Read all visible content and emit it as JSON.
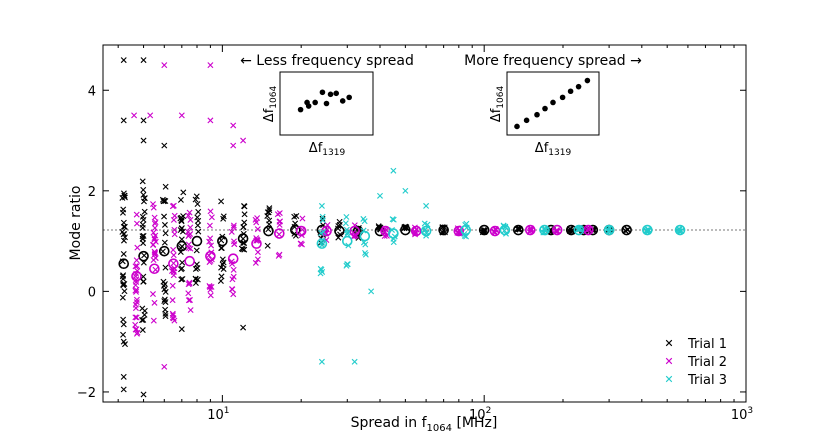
{
  "chart_data": {
    "type": "scatter",
    "xscale": "log",
    "xlim": [
      3.5,
      1000
    ],
    "ylim": [
      -2.2,
      4.9
    ],
    "xlabel_main": "Spread in f",
    "xlabel_sub": "1064",
    "xlabel_unit": " [MHz]",
    "ylabel": "Mode ratio",
    "xticks": [
      {
        "value": 10,
        "base": "10",
        "exp": "1"
      },
      {
        "value": 100,
        "base": "10",
        "exp": "2"
      },
      {
        "value": 1000,
        "base": "10",
        "exp": "3"
      }
    ],
    "yticks": [
      {
        "value": -2,
        "label": "−2"
      },
      {
        "value": 0,
        "label": "0"
      },
      {
        "value": 2,
        "label": "2"
      },
      {
        "value": 4,
        "label": "4"
      }
    ],
    "reference_line": {
      "y": 1.22,
      "style": "dotted"
    },
    "series": [
      {
        "name": "Trial 1",
        "color": "#000000",
        "x_positions": [
          4.2,
          5.0,
          6.0,
          7.0,
          8.0,
          10.0,
          12.0,
          15.0,
          19.0,
          24.0,
          28.0,
          33.0,
          40.0,
          50.0,
          70.0,
          100.0,
          135.0,
          180.0,
          215.0,
          240.0,
          260.0,
          300.0,
          350.0
        ],
        "means": [
          0.55,
          0.7,
          0.8,
          0.9,
          1.0,
          1.0,
          1.05,
          1.2,
          1.22,
          1.22,
          1.2,
          1.2,
          1.2,
          1.22,
          1.22,
          1.22,
          1.22,
          1.22,
          1.22,
          1.22,
          1.22,
          1.22,
          1.22
        ],
        "spreads": [
          1.6,
          1.5,
          1.3,
          1.1,
          0.9,
          0.8,
          0.7,
          0.5,
          0.35,
          0.25,
          0.2,
          0.15,
          0.12,
          0.08,
          0.06,
          0.05,
          0.04,
          0.03,
          0.03,
          0.03,
          0.02,
          0.02,
          0.02
        ],
        "outliers": [
          [
            4.2,
            4.6
          ],
          [
            4.2,
            3.4
          ],
          [
            5.0,
            4.6
          ],
          [
            5.0,
            3.4
          ],
          [
            4.2,
            -1.7
          ],
          [
            4.2,
            -1.95
          ],
          [
            5.0,
            -2.05
          ],
          [
            4.2,
            -1.0
          ],
          [
            7.0,
            -0.75
          ],
          [
            12.0,
            -0.72
          ],
          [
            5.0,
            3.0
          ],
          [
            6.0,
            2.9
          ]
        ]
      },
      {
        "name": "Trial 2",
        "color": "#cc00cc",
        "x_positions": [
          4.7,
          5.5,
          6.5,
          7.5,
          9.0,
          11.0,
          13.5,
          16.5,
          20.0,
          25.0,
          32.0,
          42.0,
          55.0,
          80.0,
          110.0,
          150.0,
          190.0,
          250.0
        ],
        "means": [
          0.3,
          0.45,
          0.55,
          0.6,
          0.7,
          0.65,
          0.95,
          1.15,
          1.2,
          1.2,
          1.2,
          1.2,
          1.2,
          1.2,
          1.2,
          1.22,
          1.22,
          1.22
        ],
        "spreads": [
          1.4,
          1.3,
          1.2,
          1.0,
          0.9,
          0.8,
          0.6,
          0.45,
          0.3,
          0.2,
          0.15,
          0.1,
          0.08,
          0.06,
          0.05,
          0.04,
          0.03,
          0.03
        ],
        "outliers": [
          [
            4.6,
            3.5
          ],
          [
            5.3,
            3.5
          ],
          [
            6.0,
            4.5
          ],
          [
            7.0,
            3.5
          ],
          [
            9.0,
            4.5
          ],
          [
            9.0,
            3.4
          ],
          [
            11.0,
            3.3
          ],
          [
            4.7,
            -0.75
          ],
          [
            6.0,
            -1.5
          ],
          [
            11.0,
            2.9
          ],
          [
            12.0,
            3.0
          ]
        ]
      },
      {
        "name": "Trial 3",
        "color": "#22cccc",
        "x_positions": [
          24.0,
          30.0,
          35.0,
          45.0,
          60.0,
          85.0,
          120.0,
          170.0,
          230.0,
          300.0,
          420.0,
          560.0
        ],
        "means": [
          0.95,
          1.0,
          1.1,
          1.15,
          1.2,
          1.22,
          1.22,
          1.22,
          1.22,
          1.22,
          1.22,
          1.22
        ],
        "spreads": [
          0.6,
          0.5,
          0.4,
          0.35,
          0.2,
          0.15,
          0.1,
          0.06,
          0.05,
          0.04,
          0.03,
          0.03
        ],
        "outliers": [
          [
            24.0,
            -1.4
          ],
          [
            32.0,
            -1.4
          ],
          [
            24.0,
            1.7
          ],
          [
            37.0,
            0.0
          ],
          [
            45.0,
            2.4
          ],
          [
            50.0,
            2.0
          ],
          [
            60.0,
            1.7
          ],
          [
            40.0,
            1.9
          ]
        ]
      }
    ],
    "legend": {
      "position": "lower-right",
      "entries": [
        "Trial 1",
        "Trial 2",
        "Trial 3"
      ]
    },
    "annotations": {
      "left_caption": "← Less frequency spread",
      "right_caption": "More frequency spread →",
      "inset_xlabel_main": "Δf",
      "inset_xlabel_sub": "1319",
      "inset_ylabel_main": "Δf",
      "inset_ylabel_sub": "1064",
      "left_inset_points": [
        [
          0.18,
          0.38
        ],
        [
          0.28,
          0.45
        ],
        [
          0.36,
          0.52
        ],
        [
          0.45,
          0.72
        ],
        [
          0.55,
          0.68
        ],
        [
          0.62,
          0.7
        ],
        [
          0.7,
          0.55
        ],
        [
          0.78,
          0.62
        ],
        [
          0.26,
          0.52
        ],
        [
          0.5,
          0.5
        ]
      ],
      "right_inset_points": [
        [
          0.05,
          0.05
        ],
        [
          0.17,
          0.17
        ],
        [
          0.3,
          0.28
        ],
        [
          0.4,
          0.4
        ],
        [
          0.5,
          0.52
        ],
        [
          0.62,
          0.62
        ],
        [
          0.72,
          0.74
        ],
        [
          0.82,
          0.83
        ],
        [
          0.93,
          0.95
        ]
      ]
    }
  }
}
